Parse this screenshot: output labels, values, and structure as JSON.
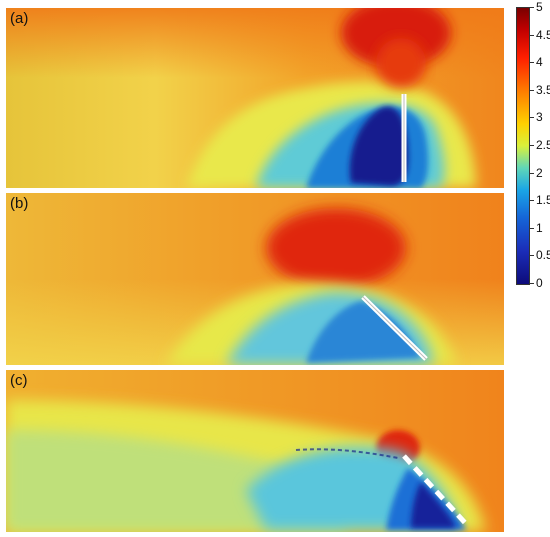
{
  "panels": [
    {
      "label": "(a)"
    },
    {
      "label": "(b)"
    },
    {
      "label": "(c)"
    }
  ],
  "colorbar": {
    "ticks": [
      "5",
      "4.5",
      "4",
      "3.5",
      "3",
      "2.5",
      "2",
      "1.5",
      "1",
      "0.5",
      "0"
    ]
  },
  "colors": {
    "deep_red": "#c20000",
    "orange": "#f28a1c",
    "yellow": "#e8e84a",
    "cyan": "#4fc7e6",
    "blue": "#1a6fd8",
    "navy": "#12168a"
  }
}
